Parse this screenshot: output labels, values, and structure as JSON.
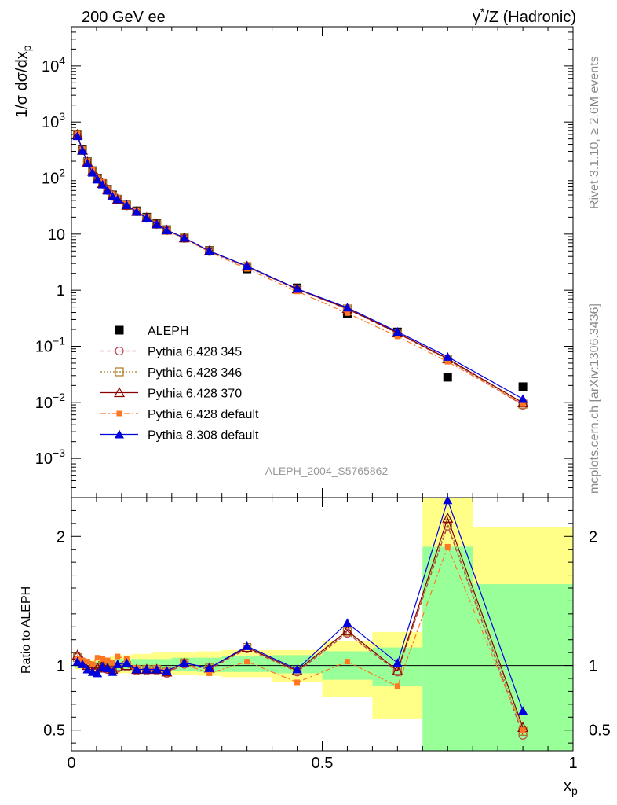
{
  "header": {
    "left": "200 GeV ee",
    "right_pre": "γ",
    "right_sup": "*",
    "right_post": "/Z (Hadronic)"
  },
  "side_labels": {
    "top": "Rivet 3.1.10, ≥ 2.6M events",
    "bottom": "mcplots.cern.ch [arXiv:1306.3436]"
  },
  "analysis_tag": "ALEPH_2004_S5765862",
  "axes": {
    "y_main": {
      "pre": "1/σ dσ/dx",
      "sub": "p"
    },
    "y_ratio": "Ratio to ALEPH",
    "x": {
      "pre": "x",
      "sub": "p"
    }
  },
  "chart_data": [
    {
      "type": "line",
      "panel": "main",
      "y_scale": "log",
      "xlim": [
        0,
        1
      ],
      "ylim": [
        0.0002,
        50000
      ],
      "y_ticks": [
        {
          "v": 0.001,
          "label": "10",
          "exp": "−3"
        },
        {
          "v": 0.01,
          "label": "10",
          "exp": "−2"
        },
        {
          "v": 0.1,
          "label": "10",
          "exp": "−1"
        },
        {
          "v": 1,
          "label": "1",
          "exp": ""
        },
        {
          "v": 10,
          "label": "10",
          "exp": ""
        },
        {
          "v": 100,
          "label": "10",
          "exp": "2"
        },
        {
          "v": 1000,
          "label": "10",
          "exp": "3"
        },
        {
          "v": 10000,
          "label": "10",
          "exp": "4"
        }
      ],
      "legend_position": "middle-left",
      "series": [
        {
          "name": "ALEPH",
          "color": "#000000",
          "marker": "square-filled",
          "style": "none",
          "x": [
            0.012,
            0.022,
            0.032,
            0.042,
            0.052,
            0.062,
            0.072,
            0.082,
            0.092,
            0.11,
            0.13,
            0.15,
            0.17,
            0.19,
            0.225,
            0.275,
            0.35,
            0.45,
            0.55,
            0.65,
            0.75,
            0.9
          ],
          "y": [
            580,
            320,
            195,
            135,
            100,
            80,
            63,
            50,
            42,
            33,
            26,
            20,
            15.5,
            12,
            8.5,
            5.1,
            2.4,
            1.1,
            0.38,
            0.18,
            0.028,
            0.019
          ]
        },
        {
          "name": "Pythia 6.428 345",
          "color": "#bb4455",
          "marker": "circle-open",
          "style": "dashed",
          "x": [
            0.012,
            0.022,
            0.032,
            0.042,
            0.052,
            0.062,
            0.072,
            0.082,
            0.092,
            0.11,
            0.13,
            0.15,
            0.17,
            0.19,
            0.225,
            0.275,
            0.35,
            0.45,
            0.55,
            0.65,
            0.75,
            0.9
          ],
          "y": [
            590,
            310,
            190,
            130,
            97,
            78,
            60,
            47,
            41,
            32,
            25,
            19.2,
            15,
            11.6,
            8.4,
            4.9,
            2.6,
            1.03,
            0.46,
            0.17,
            0.058,
            0.0089
          ]
        },
        {
          "name": "Pythia 6.428 346",
          "color": "#aa7722",
          "marker": "square-open",
          "style": "dotted",
          "x": [
            0.012,
            0.022,
            0.032,
            0.042,
            0.052,
            0.062,
            0.072,
            0.082,
            0.092,
            0.11,
            0.13,
            0.15,
            0.17,
            0.19,
            0.225,
            0.275,
            0.35,
            0.45,
            0.55,
            0.65,
            0.75,
            0.9
          ],
          "y": [
            595,
            312,
            191,
            131,
            98,
            79,
            61,
            48,
            41.5,
            32.5,
            25.2,
            19.4,
            15.1,
            11.7,
            8.5,
            5.0,
            2.65,
            1.04,
            0.465,
            0.172,
            0.059,
            0.0093
          ]
        },
        {
          "name": "Pythia 6.428 370",
          "color": "#880000",
          "marker": "triangle-open",
          "style": "solid",
          "x": [
            0.012,
            0.022,
            0.032,
            0.042,
            0.052,
            0.062,
            0.072,
            0.082,
            0.092,
            0.11,
            0.13,
            0.15,
            0.17,
            0.19,
            0.225,
            0.275,
            0.35,
            0.45,
            0.55,
            0.65,
            0.75,
            0.9
          ],
          "y": [
            600,
            315,
            192,
            132,
            99,
            80,
            62,
            48.5,
            42,
            32.8,
            25.4,
            19.6,
            15.2,
            11.8,
            8.6,
            5.0,
            2.68,
            1.05,
            0.47,
            0.174,
            0.06,
            0.0098
          ]
        },
        {
          "name": "Pythia 6.428 default",
          "color": "#ff7722",
          "marker": "square-filled-small",
          "style": "dashdot",
          "x": [
            0.012,
            0.022,
            0.032,
            0.042,
            0.052,
            0.062,
            0.072,
            0.082,
            0.092,
            0.11,
            0.13,
            0.15,
            0.17,
            0.19,
            0.225,
            0.275,
            0.35,
            0.45,
            0.55,
            0.65,
            0.75,
            0.9
          ],
          "y": [
            610,
            325,
            200,
            138,
            105,
            86,
            66,
            52,
            45,
            34.5,
            25.8,
            19.8,
            15.2,
            11.5,
            8.3,
            4.8,
            2.4,
            0.95,
            0.39,
            0.15,
            0.053,
            0.0093
          ]
        },
        {
          "name": "Pythia 8.308 default",
          "color": "#0000dd",
          "marker": "triangle-filled",
          "style": "solid",
          "x": [
            0.012,
            0.022,
            0.032,
            0.042,
            0.052,
            0.062,
            0.072,
            0.082,
            0.092,
            0.11,
            0.13,
            0.15,
            0.17,
            0.19,
            0.225,
            0.275,
            0.35,
            0.45,
            0.55,
            0.65,
            0.75,
            0.9
          ],
          "y": [
            560,
            310,
            185,
            125,
            94,
            77,
            60,
            47,
            42,
            33,
            25,
            19.4,
            15,
            11.7,
            8.6,
            5.0,
            2.7,
            1.06,
            0.49,
            0.182,
            0.065,
            0.0115
          ]
        }
      ]
    },
    {
      "type": "line",
      "panel": "ratio",
      "xlim": [
        0,
        1
      ],
      "ylim": [
        0.34,
        2.3
      ],
      "x_ticks": [
        {
          "v": 0,
          "label": "0"
        },
        {
          "v": 0.5,
          "label": "0.5"
        },
        {
          "v": 1,
          "label": "1"
        }
      ],
      "y_ticks": [
        {
          "v": 0.5,
          "label": "0.5"
        },
        {
          "v": 1,
          "label": "1"
        },
        {
          "v": 2,
          "label": "2"
        }
      ],
      "uncertainty_bands": {
        "edges": [
          0.007,
          0.017,
          0.027,
          0.037,
          0.047,
          0.057,
          0.067,
          0.077,
          0.087,
          0.097,
          0.12,
          0.14,
          0.16,
          0.18,
          0.2,
          0.25,
          0.3,
          0.4,
          0.5,
          0.6,
          0.7,
          0.8,
          1.0
        ],
        "inner": [
          [
            0.98,
            1.03
          ],
          [
            0.98,
            1.03
          ],
          [
            0.98,
            1.03
          ],
          [
            0.98,
            1.03
          ],
          [
            0.97,
            1.03
          ],
          [
            0.97,
            1.04
          ],
          [
            0.96,
            1.04
          ],
          [
            0.96,
            1.04
          ],
          [
            0.96,
            1.05
          ],
          [
            0.96,
            1.05
          ],
          [
            0.96,
            1.05
          ],
          [
            0.96,
            1.05
          ],
          [
            0.96,
            1.05
          ],
          [
            0.96,
            1.05
          ],
          [
            0.96,
            1.06
          ],
          [
            0.95,
            1.06
          ],
          [
            0.95,
            1.07
          ],
          [
            0.94,
            1.08
          ],
          [
            0.89,
            1.11
          ],
          [
            0.84,
            1.14
          ],
          [
            0.34,
            1.92
          ],
          [
            0.34,
            1.63
          ]
        ],
        "outer": [
          [
            0.97,
            1.04
          ],
          [
            0.97,
            1.04
          ],
          [
            0.97,
            1.04
          ],
          [
            0.97,
            1.04
          ],
          [
            0.96,
            1.05
          ],
          [
            0.96,
            1.06
          ],
          [
            0.95,
            1.06
          ],
          [
            0.95,
            1.07
          ],
          [
            0.94,
            1.07
          ],
          [
            0.94,
            1.08
          ],
          [
            0.94,
            1.09
          ],
          [
            0.94,
            1.09
          ],
          [
            0.94,
            1.1
          ],
          [
            0.93,
            1.1
          ],
          [
            0.93,
            1.1
          ],
          [
            0.92,
            1.11
          ],
          [
            0.91,
            1.12
          ],
          [
            0.87,
            1.12
          ],
          [
            0.76,
            1.19
          ],
          [
            0.59,
            1.26
          ],
          [
            0.34,
            2.3
          ],
          [
            0.43,
            2.07
          ]
        ]
      },
      "series": [
        {
          "name": "Pythia 6.428 345",
          "color": "#bb4455",
          "marker": "circle-open",
          "style": "dashed",
          "x": [
            0.012,
            0.022,
            0.032,
            0.042,
            0.052,
            0.062,
            0.072,
            0.082,
            0.092,
            0.11,
            0.13,
            0.15,
            0.17,
            0.19,
            0.225,
            0.275,
            0.35,
            0.45,
            0.55,
            0.65,
            0.75,
            0.9
          ],
          "y": [
            1.07,
            1.02,
            1.0,
            0.97,
            0.97,
            1.0,
            0.97,
            0.96,
            0.98,
            0.99,
            0.96,
            0.96,
            0.96,
            0.94,
            1.01,
            0.97,
            1.13,
            0.95,
            1.25,
            0.95,
            2.08,
            0.46
          ]
        },
        {
          "name": "Pythia 6.428 346",
          "color": "#aa7722",
          "marker": "square-open",
          "style": "dotted",
          "x": [
            0.012,
            0.022,
            0.032,
            0.042,
            0.052,
            0.062,
            0.072,
            0.082,
            0.092,
            0.11,
            0.13,
            0.15,
            0.17,
            0.19,
            0.225,
            0.275,
            0.35,
            0.45,
            0.55,
            0.65,
            0.75,
            0.9
          ],
          "y": [
            1.06,
            1.02,
            1.0,
            0.97,
            0.98,
            1.0,
            0.98,
            0.97,
            0.99,
            1.0,
            0.97,
            0.97,
            0.97,
            0.95,
            1.02,
            0.98,
            1.14,
            0.96,
            1.26,
            0.96,
            2.1,
            0.49
          ]
        },
        {
          "name": "Pythia 6.428 370",
          "color": "#880000",
          "marker": "triangle-open",
          "style": "solid",
          "x": [
            0.012,
            0.022,
            0.032,
            0.042,
            0.052,
            0.062,
            0.072,
            0.082,
            0.092,
            0.11,
            0.13,
            0.15,
            0.17,
            0.19,
            0.225,
            0.275,
            0.35,
            0.45,
            0.55,
            0.65,
            0.75,
            0.9
          ],
          "y": [
            1.08,
            1.03,
            1.0,
            0.98,
            0.98,
            1.0,
            0.98,
            0.97,
            0.99,
            1.0,
            0.97,
            0.97,
            0.97,
            0.95,
            1.02,
            0.98,
            1.14,
            0.96,
            1.27,
            0.96,
            2.14,
            0.52
          ]
        },
        {
          "name": "Pythia 6.428 default",
          "color": "#ff7722",
          "marker": "square-filled-small",
          "style": "dashdot",
          "x": [
            0.012,
            0.022,
            0.032,
            0.042,
            0.052,
            0.062,
            0.072,
            0.082,
            0.092,
            0.11,
            0.13,
            0.15,
            0.17,
            0.19,
            0.225,
            0.275,
            0.35,
            0.45,
            0.55,
            0.65,
            0.75,
            0.9
          ],
          "y": [
            1.05,
            1.04,
            1.03,
            1.01,
            1.06,
            1.05,
            1.04,
            1.02,
            1.07,
            1.05,
            0.98,
            0.97,
            0.98,
            0.96,
            1.01,
            0.94,
            1.03,
            0.87,
            1.03,
            0.84,
            1.92,
            0.5
          ]
        },
        {
          "name": "Pythia 8.308 default",
          "color": "#0000dd",
          "marker": "triangle-filled",
          "style": "solid",
          "x": [
            0.012,
            0.022,
            0.032,
            0.042,
            0.052,
            0.062,
            0.072,
            0.082,
            0.092,
            0.11,
            0.13,
            0.15,
            0.17,
            0.19,
            0.225,
            0.275,
            0.35,
            0.45,
            0.55,
            0.65,
            0.75,
            0.9
          ],
          "y": [
            1.03,
            1.01,
            0.97,
            0.95,
            0.94,
            0.99,
            0.98,
            0.95,
            1.01,
            1.02,
            0.97,
            0.97,
            0.97,
            0.96,
            1.02,
            0.98,
            1.15,
            0.97,
            1.33,
            1.02,
            2.28,
            0.65
          ]
        }
      ]
    }
  ]
}
